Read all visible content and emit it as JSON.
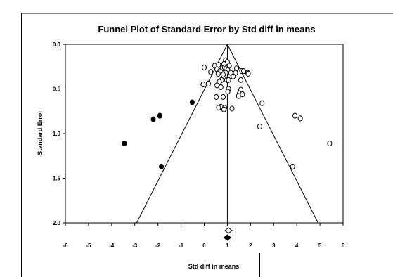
{
  "chart_data": {
    "type": "scatter",
    "title": "Funnel Plot of Standard Error by Std diff in means",
    "xlabel": "Std diff in means",
    "ylabel": "Standard Error",
    "xlim": [
      -6,
      6
    ],
    "ylim": [
      0,
      2
    ],
    "y_inverted": true,
    "x_ticks": [
      "-6",
      "-5",
      "-4",
      "-3",
      "-2",
      "-1",
      "0",
      "1",
      "2",
      "3",
      "4",
      "5",
      "6"
    ],
    "y_ticks": [
      "0.0",
      "0.5",
      "1.0",
      "1.5",
      "2.0"
    ],
    "grid": false,
    "legend": "none",
    "funnel": {
      "center": 1.0,
      "apex_se": 0.0,
      "base_se": 2.0,
      "lower_at_base": -2.92,
      "upper_at_base": 4.92
    },
    "series": [
      {
        "marker": "open-circle",
        "points": [
          [
            0.92,
            0.18
          ],
          [
            1.0,
            0.2
          ],
          [
            0.85,
            0.22
          ],
          [
            1.08,
            0.24
          ],
          [
            0.45,
            0.24
          ],
          [
            0.62,
            0.23
          ],
          [
            0.78,
            0.27
          ],
          [
            0.88,
            0.26
          ],
          [
            0.0,
            0.26
          ],
          [
            0.95,
            0.27
          ],
          [
            1.02,
            0.29
          ],
          [
            1.4,
            0.27
          ],
          [
            0.55,
            0.28
          ],
          [
            0.68,
            0.3
          ],
          [
            0.28,
            0.31
          ],
          [
            0.72,
            0.31
          ],
          [
            1.62,
            0.3
          ],
          [
            1.7,
            0.3
          ],
          [
            0.93,
            0.32
          ],
          [
            1.15,
            0.32
          ],
          [
            1.35,
            0.32
          ],
          [
            1.88,
            0.32
          ],
          [
            1.9,
            0.33
          ],
          [
            0.6,
            0.33
          ],
          [
            0.82,
            0.34
          ],
          [
            1.25,
            0.36
          ],
          [
            0.75,
            0.4
          ],
          [
            0.97,
            0.4
          ],
          [
            1.05,
            0.4
          ],
          [
            1.58,
            0.4
          ],
          [
            0.65,
            0.42
          ],
          [
            0.18,
            0.44
          ],
          [
            -0.05,
            0.45
          ],
          [
            0.55,
            0.46
          ],
          [
            0.72,
            0.48
          ],
          [
            1.05,
            0.5
          ],
          [
            1.58,
            0.51
          ],
          [
            1.02,
            0.53
          ],
          [
            1.52,
            0.55
          ],
          [
            1.65,
            0.56
          ],
          [
            1.48,
            0.58
          ],
          [
            0.82,
            0.59
          ],
          [
            0.52,
            0.59
          ],
          [
            2.5,
            0.66
          ],
          [
            0.72,
            0.7
          ],
          [
            0.62,
            0.71
          ],
          [
            0.88,
            0.71
          ],
          [
            1.2,
            0.72
          ],
          [
            0.85,
            0.73
          ],
          [
            3.92,
            0.8
          ],
          [
            4.15,
            0.83
          ],
          [
            2.4,
            0.92
          ],
          [
            5.42,
            1.11
          ],
          [
            3.82,
            1.37
          ]
        ]
      },
      {
        "marker": "filled-circle",
        "points": [
          [
            -0.52,
            0.65
          ],
          [
            -1.92,
            0.8
          ],
          [
            -2.2,
            0.84
          ],
          [
            -3.45,
            1.11
          ],
          [
            -1.85,
            1.37
          ]
        ]
      }
    ],
    "summary_diamonds": [
      {
        "marker": "open-diamond",
        "x": 1.05,
        "label_position": "below-axis-1"
      },
      {
        "marker": "filled-diamond",
        "x": 1.0,
        "label_position": "below-axis-2"
      }
    ]
  }
}
